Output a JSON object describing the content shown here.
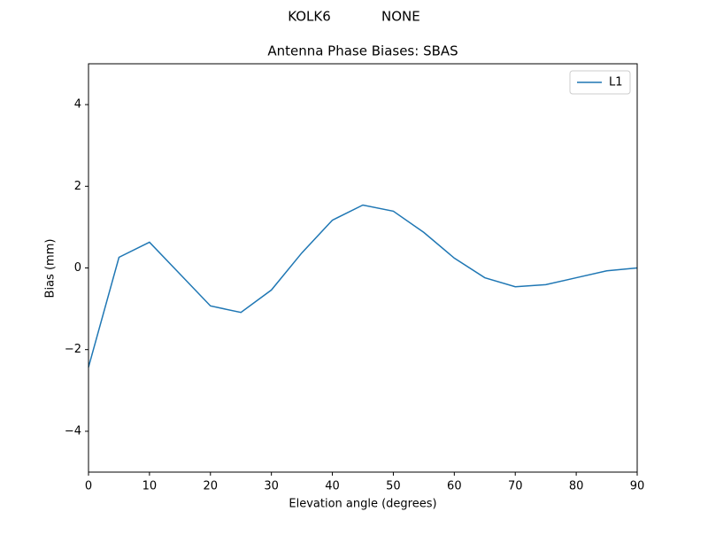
{
  "chart_data": {
    "type": "line",
    "suptitle": "KOLK6            NONE",
    "title": "Antenna Phase Biases: SBAS",
    "x_label": "Elevation angle (degrees)",
    "y_label": "Bias (mm)",
    "x": [
      0,
      5,
      10,
      15,
      20,
      25,
      30,
      35,
      40,
      45,
      50,
      55,
      60,
      65,
      70,
      75,
      80,
      85,
      90
    ],
    "series": [
      {
        "name": "L1",
        "color": "#1f77b4",
        "values": [
          -2.43,
          0.26,
          0.63,
          -0.15,
          -0.93,
          -1.09,
          -0.54,
          0.37,
          1.17,
          1.54,
          1.39,
          0.87,
          0.24,
          -0.24,
          -0.46,
          -0.41,
          -0.24,
          -0.07,
          0.0
        ]
      }
    ],
    "xlim": [
      0,
      90
    ],
    "xticks": [
      0,
      10,
      20,
      30,
      40,
      50,
      60,
      70,
      80,
      90
    ],
    "ylim": [
      -5,
      5
    ],
    "yticks": [
      {
        "value": -4,
        "label": "−4"
      },
      {
        "value": -2,
        "label": "−2"
      },
      0,
      2,
      4
    ],
    "grid": false,
    "legend_loc": "upper-right"
  }
}
